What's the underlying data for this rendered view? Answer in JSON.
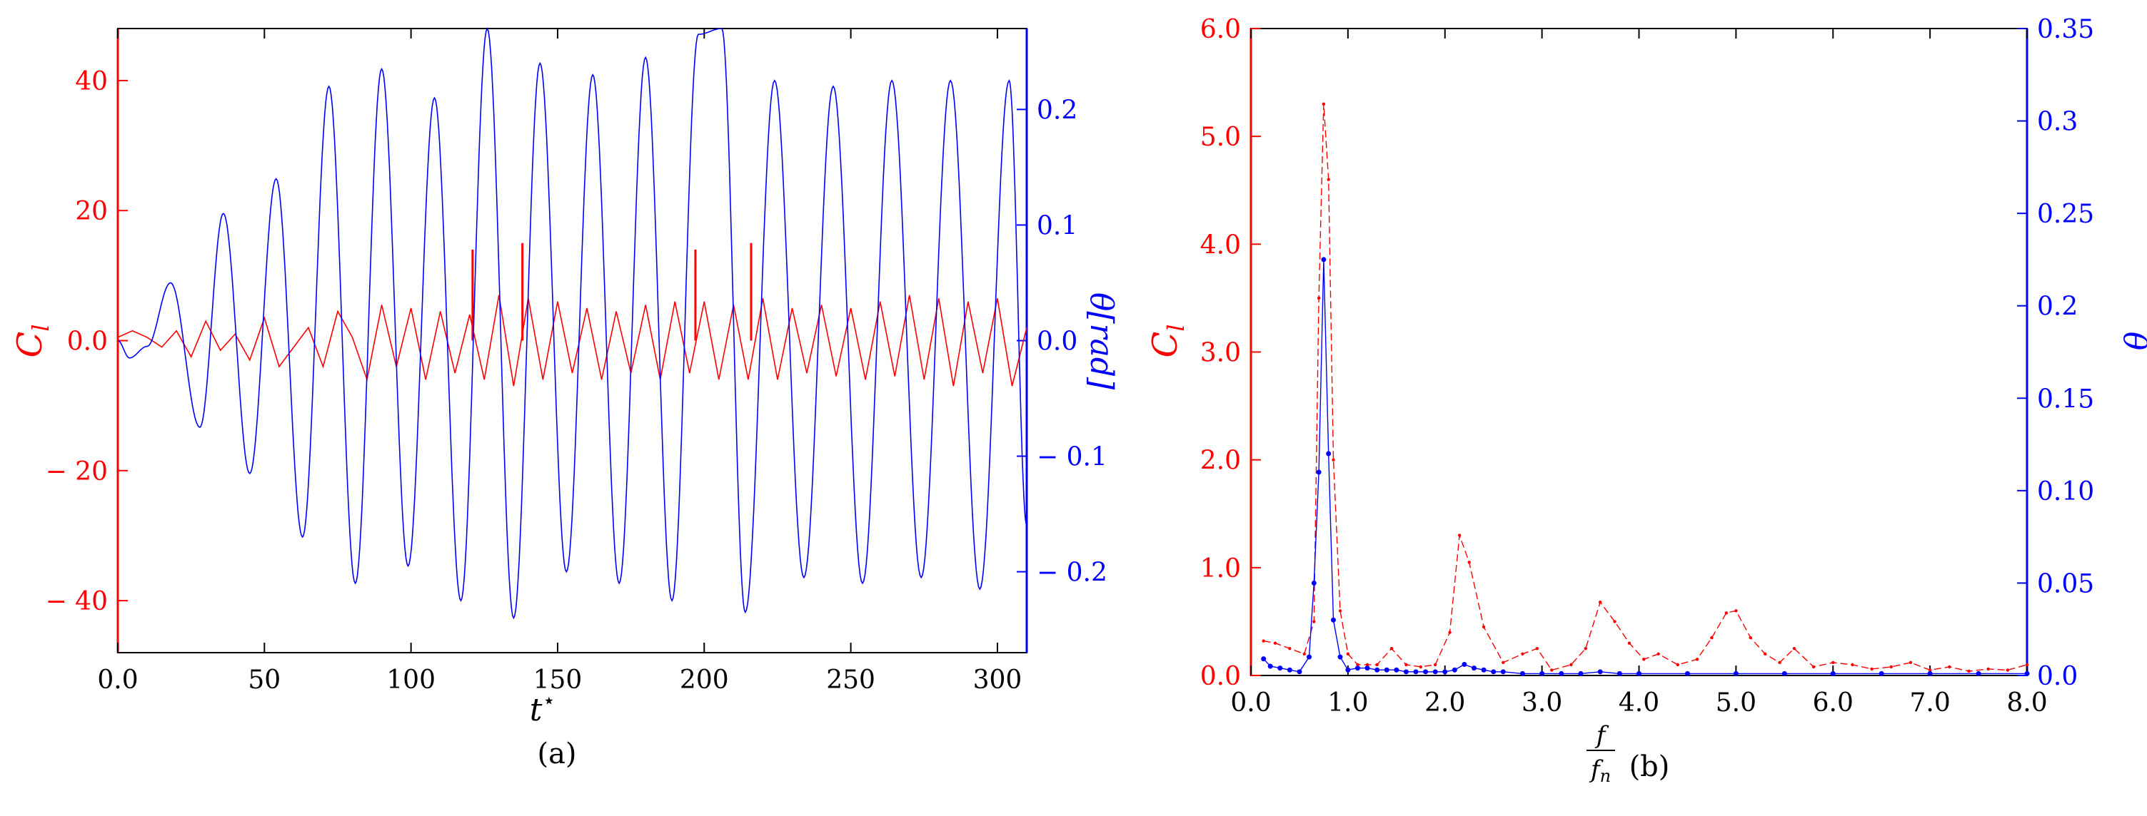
{
  "colors": {
    "left_axis": "#ff0000",
    "right_axis": "#0000ff",
    "frame": "#000000"
  },
  "chart_data": [
    {
      "type": "line",
      "panel_caption": "(a)",
      "xlabel": "t*",
      "ylabel_left": "C_l",
      "ylabel_right": "θ[rad]",
      "xlim": [
        0,
        310
      ],
      "ylim_left": [
        -48,
        48
      ],
      "ylim_right": [
        -0.27,
        0.27
      ],
      "grid": false,
      "x_ticks": [
        0,
        50,
        100,
        150,
        200,
        250,
        300
      ],
      "x_tick_labels": [
        "0.0",
        "50",
        "100",
        "150",
        "200",
        "250",
        "300"
      ],
      "y_left_ticks": [
        -40,
        -20,
        0,
        20,
        40
      ],
      "y_left_tick_labels": [
        "− 40",
        "− 20",
        "0.0",
        "20",
        "40"
      ],
      "y_right_ticks": [
        -0.2,
        -0.1,
        0,
        0.1,
        0.2
      ],
      "y_right_tick_labels": [
        "− 0.2",
        "− 0.1",
        "0.0",
        "0.1",
        "0.2"
      ],
      "series": [
        {
          "axis": "left",
          "color": "#ff0000",
          "x": [
            0,
            5,
            10,
            15,
            20,
            25,
            30,
            35,
            40,
            45,
            50,
            55,
            60,
            65,
            70,
            75,
            80,
            85,
            90,
            95,
            100,
            105,
            110,
            115,
            120,
            125,
            130,
            135,
            140,
            145,
            150,
            155,
            160,
            165,
            170,
            175,
            180,
            185,
            190,
            195,
            200,
            205,
            210,
            215,
            220,
            225,
            230,
            235,
            240,
            245,
            250,
            255,
            260,
            265,
            270,
            275,
            280,
            285,
            290,
            295,
            300,
            305,
            310
          ],
          "values": [
            0.5,
            1.5,
            0.5,
            -1,
            1.5,
            -2.5,
            3,
            -1.5,
            1,
            -3,
            3.5,
            -4,
            -1,
            2,
            -4,
            4.5,
            0.5,
            -6,
            5.5,
            -4,
            5,
            -6,
            4.5,
            -5,
            4,
            -6,
            7,
            -7,
            6.5,
            -6,
            6,
            -5,
            5,
            -6,
            4.5,
            -5,
            5.5,
            -6,
            6,
            -5,
            6,
            -6,
            5.5,
            -6,
            6.5,
            -6,
            5,
            -5,
            5.5,
            -5.5,
            5,
            -6,
            6,
            -5.5,
            7,
            -6,
            6.5,
            -7,
            6,
            -5,
            6.5,
            -7,
            2
          ]
        },
        {
          "axis": "left",
          "color": "#ff0000",
          "style": "spikes",
          "x": [
            121,
            138,
            197,
            216
          ],
          "values": [
            14,
            15,
            14,
            15
          ]
        },
        {
          "axis": "right",
          "color": "#0000ff",
          "x": [
            0,
            4,
            10,
            18,
            28,
            36,
            45,
            54,
            63,
            72,
            81,
            90,
            99,
            108,
            117,
            126,
            135,
            144,
            153,
            162,
            171,
            180,
            189,
            198,
            206,
            214,
            224,
            234,
            244,
            254,
            264,
            274,
            284,
            294,
            304,
            310
          ],
          "values": [
            0,
            -0.015,
            -0.005,
            0.05,
            -0.075,
            0.11,
            -0.115,
            0.14,
            -0.17,
            0.22,
            -0.21,
            0.235,
            -0.195,
            0.21,
            -0.225,
            0.27,
            -0.24,
            0.24,
            -0.2,
            0.23,
            -0.21,
            0.245,
            -0.225,
            0.265,
            0.27,
            -0.235,
            0.225,
            -0.205,
            0.22,
            -0.21,
            0.225,
            -0.205,
            0.225,
            -0.215,
            0.225,
            -0.16
          ]
        }
      ]
    },
    {
      "type": "line",
      "panel_caption": "(b)",
      "xlabel": "f/f_n",
      "ylabel_left": "C_l",
      "ylabel_right": "θ",
      "xlim": [
        0,
        8
      ],
      "ylim_left": [
        0,
        6
      ],
      "ylim_right": [
        0,
        0.35
      ],
      "grid": false,
      "x_ticks": [
        0,
        1,
        2,
        3,
        4,
        5,
        6,
        7,
        8
      ],
      "x_tick_labels": [
        "0.0",
        "1.0",
        "2.0",
        "3.0",
        "4.0",
        "5.0",
        "6.0",
        "7.0",
        "8.0"
      ],
      "y_left_ticks": [
        0,
        1,
        2,
        3,
        4,
        5,
        6
      ],
      "y_left_tick_labels": [
        "0.0",
        "1.0",
        "2.0",
        "3.0",
        "4.0",
        "5.0",
        "6.0"
      ],
      "y_right_ticks": [
        0,
        0.05,
        0.1,
        0.15,
        0.2,
        0.25,
        0.3,
        0.35
      ],
      "y_right_tick_labels": [
        "0.0",
        "0.05",
        "0.10",
        "0.15",
        "0.2",
        "0.25",
        "0.3",
        "0.35"
      ],
      "series": [
        {
          "axis": "left",
          "color": "#ff0000",
          "x": [
            0.13,
            0.25,
            0.4,
            0.55,
            0.65,
            0.7,
            0.75,
            0.8,
            0.85,
            0.92,
            1.0,
            1.1,
            1.2,
            1.3,
            1.45,
            1.6,
            1.75,
            1.9,
            2.05,
            2.15,
            2.25,
            2.4,
            2.6,
            2.8,
            2.95,
            3.1,
            3.3,
            3.45,
            3.6,
            3.75,
            3.9,
            4.05,
            4.2,
            4.4,
            4.6,
            4.75,
            4.9,
            5.0,
            5.15,
            5.3,
            5.45,
            5.6,
            5.8,
            6.0,
            6.2,
            6.4,
            6.6,
            6.8,
            7.0,
            7.2,
            7.4,
            7.6,
            7.8,
            8.0
          ],
          "values": [
            0.32,
            0.3,
            0.25,
            0.2,
            0.5,
            3.5,
            5.3,
            4.6,
            2.0,
            0.6,
            0.2,
            0.1,
            0.1,
            0.1,
            0.25,
            0.1,
            0.08,
            0.1,
            0.4,
            1.3,
            1.05,
            0.45,
            0.12,
            0.2,
            0.25,
            0.05,
            0.1,
            0.25,
            0.68,
            0.5,
            0.3,
            0.15,
            0.2,
            0.1,
            0.15,
            0.35,
            0.58,
            0.6,
            0.35,
            0.2,
            0.12,
            0.25,
            0.08,
            0.12,
            0.1,
            0.06,
            0.08,
            0.12,
            0.05,
            0.08,
            0.04,
            0.06,
            0.05,
            0.1
          ]
        },
        {
          "axis": "right",
          "color": "#0000ff",
          "x": [
            0.13,
            0.2,
            0.3,
            0.4,
            0.5,
            0.6,
            0.65,
            0.7,
            0.75,
            0.8,
            0.85,
            0.92,
            1.0,
            1.1,
            1.2,
            1.3,
            1.4,
            1.5,
            1.6,
            1.7,
            1.8,
            1.9,
            2.0,
            2.1,
            2.2,
            2.3,
            2.4,
            2.5,
            2.6,
            2.8,
            3.0,
            3.2,
            3.4,
            3.6,
            3.8,
            4.0,
            4.5,
            5.0,
            5.5,
            6.0,
            6.5,
            7.0,
            7.5,
            8.0
          ],
          "values": [
            0.009,
            0.005,
            0.004,
            0.003,
            0.002,
            0.01,
            0.05,
            0.11,
            0.225,
            0.12,
            0.03,
            0.01,
            0.003,
            0.004,
            0.004,
            0.003,
            0.003,
            0.003,
            0.002,
            0.002,
            0.002,
            0.002,
            0.002,
            0.003,
            0.006,
            0.004,
            0.003,
            0.002,
            0.002,
            0.001,
            0.001,
            0.001,
            0.001,
            0.002,
            0.001,
            0.001,
            0.001,
            0.001,
            0.001,
            0.001,
            0.001,
            0.001,
            0.001,
            0.001
          ]
        }
      ]
    }
  ]
}
